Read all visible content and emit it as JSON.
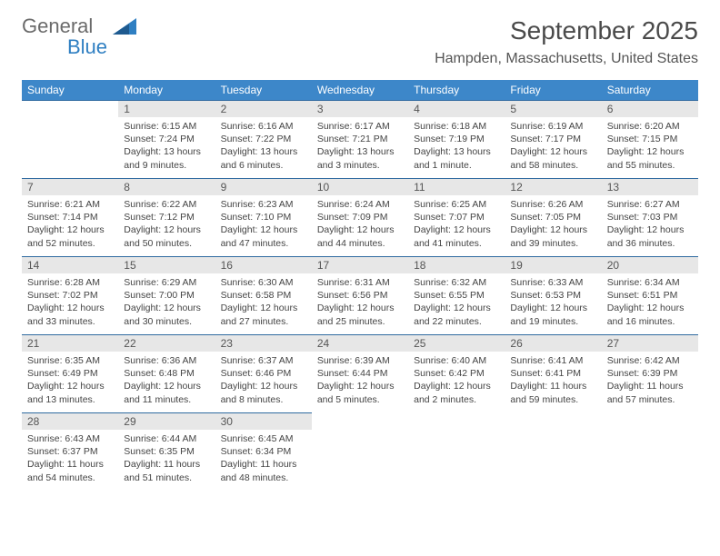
{
  "logo": {
    "word1": "General",
    "word2": "Blue"
  },
  "title": "September 2025",
  "location": "Hampden, Massachusetts, United States",
  "header_bg": "#3d87c9",
  "header_fg": "#ffffff",
  "daynum_bg": "#e7e7e7",
  "row_border": "#2f6aa0",
  "weekdays": [
    "Sunday",
    "Monday",
    "Tuesday",
    "Wednesday",
    "Thursday",
    "Friday",
    "Saturday"
  ],
  "weeks": [
    [
      null,
      {
        "n": "1",
        "sr": "Sunrise: 6:15 AM",
        "ss": "Sunset: 7:24 PM",
        "dl": "Daylight: 13 hours and 9 minutes."
      },
      {
        "n": "2",
        "sr": "Sunrise: 6:16 AM",
        "ss": "Sunset: 7:22 PM",
        "dl": "Daylight: 13 hours and 6 minutes."
      },
      {
        "n": "3",
        "sr": "Sunrise: 6:17 AM",
        "ss": "Sunset: 7:21 PM",
        "dl": "Daylight: 13 hours and 3 minutes."
      },
      {
        "n": "4",
        "sr": "Sunrise: 6:18 AM",
        "ss": "Sunset: 7:19 PM",
        "dl": "Daylight: 13 hours and 1 minute."
      },
      {
        "n": "5",
        "sr": "Sunrise: 6:19 AM",
        "ss": "Sunset: 7:17 PM",
        "dl": "Daylight: 12 hours and 58 minutes."
      },
      {
        "n": "6",
        "sr": "Sunrise: 6:20 AM",
        "ss": "Sunset: 7:15 PM",
        "dl": "Daylight: 12 hours and 55 minutes."
      }
    ],
    [
      {
        "n": "7",
        "sr": "Sunrise: 6:21 AM",
        "ss": "Sunset: 7:14 PM",
        "dl": "Daylight: 12 hours and 52 minutes."
      },
      {
        "n": "8",
        "sr": "Sunrise: 6:22 AM",
        "ss": "Sunset: 7:12 PM",
        "dl": "Daylight: 12 hours and 50 minutes."
      },
      {
        "n": "9",
        "sr": "Sunrise: 6:23 AM",
        "ss": "Sunset: 7:10 PM",
        "dl": "Daylight: 12 hours and 47 minutes."
      },
      {
        "n": "10",
        "sr": "Sunrise: 6:24 AM",
        "ss": "Sunset: 7:09 PM",
        "dl": "Daylight: 12 hours and 44 minutes."
      },
      {
        "n": "11",
        "sr": "Sunrise: 6:25 AM",
        "ss": "Sunset: 7:07 PM",
        "dl": "Daylight: 12 hours and 41 minutes."
      },
      {
        "n": "12",
        "sr": "Sunrise: 6:26 AM",
        "ss": "Sunset: 7:05 PM",
        "dl": "Daylight: 12 hours and 39 minutes."
      },
      {
        "n": "13",
        "sr": "Sunrise: 6:27 AM",
        "ss": "Sunset: 7:03 PM",
        "dl": "Daylight: 12 hours and 36 minutes."
      }
    ],
    [
      {
        "n": "14",
        "sr": "Sunrise: 6:28 AM",
        "ss": "Sunset: 7:02 PM",
        "dl": "Daylight: 12 hours and 33 minutes."
      },
      {
        "n": "15",
        "sr": "Sunrise: 6:29 AM",
        "ss": "Sunset: 7:00 PM",
        "dl": "Daylight: 12 hours and 30 minutes."
      },
      {
        "n": "16",
        "sr": "Sunrise: 6:30 AM",
        "ss": "Sunset: 6:58 PM",
        "dl": "Daylight: 12 hours and 27 minutes."
      },
      {
        "n": "17",
        "sr": "Sunrise: 6:31 AM",
        "ss": "Sunset: 6:56 PM",
        "dl": "Daylight: 12 hours and 25 minutes."
      },
      {
        "n": "18",
        "sr": "Sunrise: 6:32 AM",
        "ss": "Sunset: 6:55 PM",
        "dl": "Daylight: 12 hours and 22 minutes."
      },
      {
        "n": "19",
        "sr": "Sunrise: 6:33 AM",
        "ss": "Sunset: 6:53 PM",
        "dl": "Daylight: 12 hours and 19 minutes."
      },
      {
        "n": "20",
        "sr": "Sunrise: 6:34 AM",
        "ss": "Sunset: 6:51 PM",
        "dl": "Daylight: 12 hours and 16 minutes."
      }
    ],
    [
      {
        "n": "21",
        "sr": "Sunrise: 6:35 AM",
        "ss": "Sunset: 6:49 PM",
        "dl": "Daylight: 12 hours and 13 minutes."
      },
      {
        "n": "22",
        "sr": "Sunrise: 6:36 AM",
        "ss": "Sunset: 6:48 PM",
        "dl": "Daylight: 12 hours and 11 minutes."
      },
      {
        "n": "23",
        "sr": "Sunrise: 6:37 AM",
        "ss": "Sunset: 6:46 PM",
        "dl": "Daylight: 12 hours and 8 minutes."
      },
      {
        "n": "24",
        "sr": "Sunrise: 6:39 AM",
        "ss": "Sunset: 6:44 PM",
        "dl": "Daylight: 12 hours and 5 minutes."
      },
      {
        "n": "25",
        "sr": "Sunrise: 6:40 AM",
        "ss": "Sunset: 6:42 PM",
        "dl": "Daylight: 12 hours and 2 minutes."
      },
      {
        "n": "26",
        "sr": "Sunrise: 6:41 AM",
        "ss": "Sunset: 6:41 PM",
        "dl": "Daylight: 11 hours and 59 minutes."
      },
      {
        "n": "27",
        "sr": "Sunrise: 6:42 AM",
        "ss": "Sunset: 6:39 PM",
        "dl": "Daylight: 11 hours and 57 minutes."
      }
    ],
    [
      {
        "n": "28",
        "sr": "Sunrise: 6:43 AM",
        "ss": "Sunset: 6:37 PM",
        "dl": "Daylight: 11 hours and 54 minutes."
      },
      {
        "n": "29",
        "sr": "Sunrise: 6:44 AM",
        "ss": "Sunset: 6:35 PM",
        "dl": "Daylight: 11 hours and 51 minutes."
      },
      {
        "n": "30",
        "sr": "Sunrise: 6:45 AM",
        "ss": "Sunset: 6:34 PM",
        "dl": "Daylight: 11 hours and 48 minutes."
      },
      null,
      null,
      null,
      null
    ]
  ]
}
